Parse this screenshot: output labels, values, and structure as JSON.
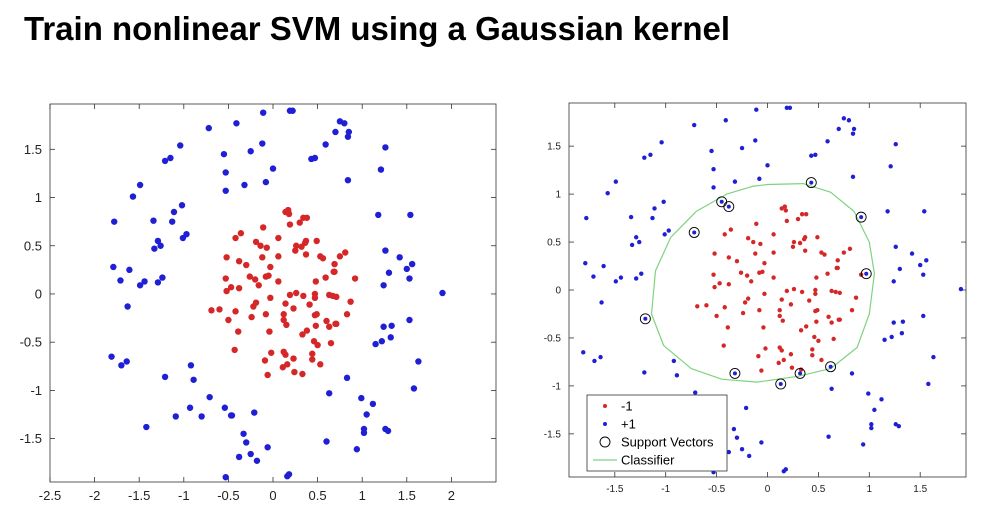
{
  "page": {
    "title": "Train nonlinear SVM using a Gaussian kernel"
  },
  "chart_data": [
    {
      "type": "scatter",
      "title": "",
      "xlabel": "",
      "ylabel": "",
      "xlim": [
        -2.5,
        2.5
      ],
      "ylim": [
        -1.95,
        1.97
      ],
      "xticks": [
        -2.5,
        -2,
        -1.5,
        -1,
        -0.5,
        0,
        0.5,
        1,
        1.5,
        2
      ],
      "xtick_labels": [
        "-2.5",
        "-2",
        "-1.5",
        "-1",
        "-0.5",
        "0",
        "0.5",
        "1",
        "1.5",
        "2"
      ],
      "yticks": [
        1.5,
        1,
        0.5,
        0,
        -0.5,
        -1,
        -1.5
      ],
      "ytick_labels": [
        "1.5",
        "1",
        "0.5",
        "0",
        "-0.5",
        "-1",
        "-1.5"
      ],
      "colors": {
        "class_neg": "#d62728",
        "class_pos": "#1f1fd6"
      },
      "series": [
        {
          "name": "-1",
          "color": "#d62728",
          "points": []
        },
        {
          "name": "+1",
          "color": "#1f1fd6",
          "points": []
        }
      ]
    },
    {
      "type": "scatter",
      "title": "",
      "xlabel": "",
      "ylabel": "",
      "xlim": [
        -1.95,
        1.95
      ],
      "ylim": [
        -1.95,
        1.95
      ],
      "xticks": [
        -1.5,
        -1,
        -0.5,
        0,
        0.5,
        1,
        1.5
      ],
      "xtick_labels": [
        "-1.5",
        "-1",
        "-0.5",
        "0",
        "0.5",
        "1",
        "1.5"
      ],
      "yticks": [
        1.5,
        1,
        0.5,
        0,
        -0.5,
        -1,
        -1.5
      ],
      "ytick_labels": [
        "1.5",
        "1",
        "0.5",
        "0",
        "-0.5",
        "-1",
        "-1.5"
      ],
      "legend": {
        "position": "bottom-left",
        "entries": [
          "-1",
          "+1",
          "Support Vectors",
          "Classifier"
        ]
      },
      "colors": {
        "class_neg": "#d62728",
        "class_pos": "#1f1fd6",
        "classifier": "#7ed37e",
        "support": "#000000"
      },
      "support_vectors": [
        [
          -0.45,
          0.92
        ],
        [
          -0.38,
          0.87
        ],
        [
          -0.72,
          0.6
        ],
        [
          -1.2,
          -0.3
        ],
        [
          -0.32,
          -0.87
        ],
        [
          0.13,
          -0.98
        ],
        [
          0.32,
          -0.87
        ],
        [
          0.62,
          -0.8
        ],
        [
          0.97,
          0.17
        ],
        [
          0.92,
          0.76
        ],
        [
          0.43,
          1.12
        ]
      ],
      "classifier_boundary": [
        [
          0.0,
          1.1
        ],
        [
          0.35,
          1.11
        ],
        [
          0.62,
          1.02
        ],
        [
          0.85,
          0.82
        ],
        [
          1.0,
          0.5
        ],
        [
          1.05,
          0.17
        ],
        [
          1.0,
          -0.25
        ],
        [
          0.88,
          -0.6
        ],
        [
          0.62,
          -0.82
        ],
        [
          0.3,
          -0.9
        ],
        [
          -0.1,
          -0.96
        ],
        [
          -0.45,
          -0.93
        ],
        [
          -0.75,
          -0.82
        ],
        [
          -1.02,
          -0.58
        ],
        [
          -1.14,
          -0.25
        ],
        [
          -1.1,
          0.2
        ],
        [
          -0.95,
          0.55
        ],
        [
          -0.7,
          0.82
        ],
        [
          -0.4,
          1.0
        ],
        [
          -0.15,
          1.08
        ]
      ],
      "series": [
        {
          "name": "-1",
          "color": "#d62728",
          "points": []
        },
        {
          "name": "+1",
          "color": "#1f1fd6",
          "points": []
        }
      ]
    }
  ]
}
